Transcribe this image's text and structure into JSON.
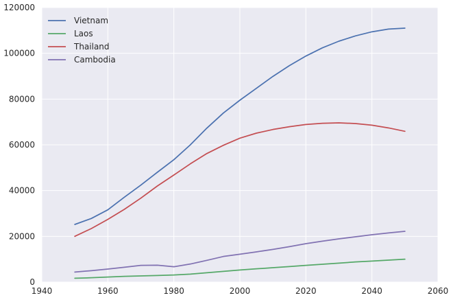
{
  "chart_data": {
    "type": "line",
    "x_ticks": [
      1940,
      1960,
      1980,
      2000,
      2020,
      2040,
      2060
    ],
    "y_ticks": [
      0,
      20000,
      40000,
      60000,
      80000,
      100000,
      120000
    ],
    "xlim": [
      1940,
      2060
    ],
    "ylim": [
      0,
      120000
    ],
    "grid": true,
    "legend_position": "top-left",
    "x": [
      1950,
      1955,
      1960,
      1965,
      1970,
      1975,
      1980,
      1985,
      1990,
      1995,
      2000,
      2005,
      2010,
      2015,
      2020,
      2025,
      2030,
      2035,
      2040,
      2045,
      2050
    ],
    "series": [
      {
        "name": "Vietnam",
        "color": "#4c72b0",
        "values": [
          25200,
          27800,
          31600,
          37100,
          42400,
          48000,
          53500,
          60000,
          67300,
          73900,
          79500,
          84700,
          89900,
          94600,
          98800,
          102400,
          105300,
          107600,
          109400,
          110600,
          111000
        ]
      },
      {
        "name": "Laos",
        "color": "#55a868",
        "values": [
          1700,
          1900,
          2200,
          2500,
          2700,
          2900,
          3100,
          3500,
          4100,
          4700,
          5300,
          5800,
          6300,
          6800,
          7300,
          7800,
          8300,
          8800,
          9200,
          9600,
          10000
        ]
      },
      {
        "name": "Thailand",
        "color": "#c44e52",
        "values": [
          20000,
          23400,
          27400,
          31800,
          36700,
          42000,
          46800,
          51700,
          56200,
          59800,
          62900,
          65100,
          66700,
          67900,
          68900,
          69400,
          69600,
          69300,
          68600,
          67400,
          65900
        ]
      },
      {
        "name": "Cambodia",
        "color": "#8172b2",
        "values": [
          4400,
          5000,
          5700,
          6500,
          7300,
          7400,
          6700,
          7900,
          9500,
          11200,
          12200,
          13200,
          14300,
          15500,
          16800,
          17900,
          18900,
          19800,
          20700,
          21500,
          22200
        ]
      }
    ]
  }
}
